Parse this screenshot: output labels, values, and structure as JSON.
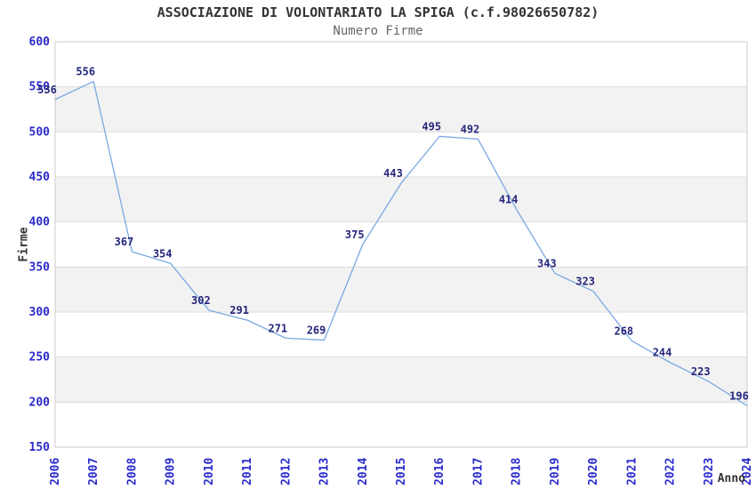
{
  "chart_data": {
    "type": "line",
    "title": "ASSOCIAZIONE DI VOLONTARIATO LA SPIGA (c.f.98026650782)",
    "subtitle": "Numero Firme",
    "xlabel": "Anno",
    "ylabel": "Firme",
    "x": [
      2006,
      2007,
      2008,
      2009,
      2010,
      2011,
      2012,
      2013,
      2014,
      2015,
      2016,
      2017,
      2018,
      2019,
      2020,
      2021,
      2022,
      2023,
      2024
    ],
    "series": [
      {
        "name": "Numero Firme",
        "values": [
          536,
          556,
          367,
          354,
          302,
          291,
          271,
          269,
          375,
          443,
          495,
          492,
          414,
          343,
          323,
          268,
          244,
          223,
          196
        ]
      }
    ],
    "ylim": [
      150,
      600
    ],
    "ytick_step": 50,
    "yticks": [
      150,
      200,
      250,
      300,
      350,
      400,
      450,
      500,
      550,
      600
    ],
    "grid": true,
    "banding": "alternating horizontal bands",
    "legend": "none",
    "data_labels_shown": true,
    "colors": {
      "line": "#7aa9e2",
      "tick_label": "#2a2acc",
      "data_label": "#26267d",
      "band": "#f2f2f2",
      "grid": "#dcdcdc",
      "plot_border": "#cccccc",
      "title": "#333333",
      "subtitle": "#666666",
      "axis_title": "#333333",
      "background": "#ffffff"
    }
  }
}
